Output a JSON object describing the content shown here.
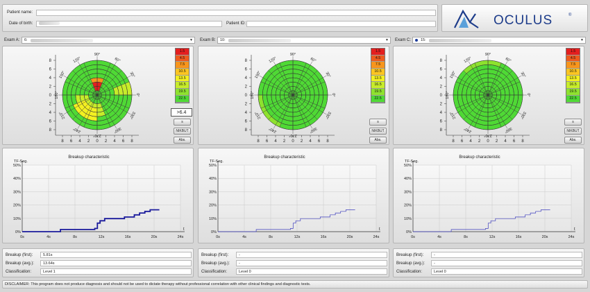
{
  "patient": {
    "name_label": "Patient name:",
    "dob_label": "Date of birth:",
    "id_label": "Patient ID:"
  },
  "logo": {
    "text": "OCULUS",
    "mark": "®"
  },
  "exams": [
    {
      "label": "Exam A:",
      "value": "6:",
      "value_after_redaction": "",
      "show_dot": false,
      "threshold_value": ">6.4",
      "buttons": [
        "s",
        "NIKBUT",
        "Abs."
      ],
      "summary": {
        "first": "5.81s",
        "avg": "13.64s",
        "classification": "Level 1"
      },
      "chart_data": {
        "type": "line",
        "title": "Breakup characteristic",
        "ylabel": "TF-Seg.",
        "xlabel": "t",
        "x_ticks": [
          "0s",
          "4s",
          "8s",
          "12s",
          "16s",
          "20s",
          "24s"
        ],
        "y_ticks": [
          "0%",
          "10%",
          "20%",
          "30%",
          "40%",
          "50%"
        ],
        "xlim": [
          0,
          24
        ],
        "ylim": [
          0,
          50
        ],
        "line_weight": "bold",
        "points": [
          [
            0,
            0
          ],
          [
            5.8,
            0
          ],
          [
            5.8,
            1.6
          ],
          [
            11.0,
            1.6
          ],
          [
            11.0,
            2.4
          ],
          [
            11.4,
            2.4
          ],
          [
            11.4,
            6.4
          ],
          [
            11.8,
            6.4
          ],
          [
            11.8,
            8.2
          ],
          [
            12.5,
            8.2
          ],
          [
            12.5,
            9.8
          ],
          [
            15.5,
            9.8
          ],
          [
            15.5,
            11.0
          ],
          [
            17.0,
            11.0
          ],
          [
            17.0,
            12.6
          ],
          [
            17.8,
            12.6
          ],
          [
            17.8,
            14.0
          ],
          [
            18.6,
            14.0
          ],
          [
            18.6,
            15.2
          ],
          [
            19.4,
            15.2
          ],
          [
            19.4,
            16.4
          ],
          [
            20.8,
            16.4
          ]
        ]
      }
    },
    {
      "label": "Exam B:",
      "value": "10:",
      "value_after_redaction": "",
      "show_dot": false,
      "threshold_value": "",
      "buttons": [
        "s",
        "NIKBUT",
        "Abs."
      ],
      "summary": {
        "first": "-",
        "avg": "-",
        "classification": "Level 0"
      },
      "chart_data": {
        "type": "line",
        "title": "Breakup characteristic",
        "ylabel": "TF-Seg.",
        "xlabel": "t",
        "x_ticks": [
          "0s",
          "4s",
          "8s",
          "12s",
          "16s",
          "20s",
          "24s"
        ],
        "y_ticks": [
          "0%",
          "10%",
          "20%",
          "30%",
          "40%",
          "50%"
        ],
        "xlim": [
          0,
          24
        ],
        "ylim": [
          0,
          50
        ],
        "line_weight": "thin",
        "points": [
          [
            0,
            0
          ],
          [
            5.8,
            0
          ],
          [
            5.8,
            1.6
          ],
          [
            11.0,
            1.6
          ],
          [
            11.0,
            2.4
          ],
          [
            11.4,
            2.4
          ],
          [
            11.4,
            6.4
          ],
          [
            11.8,
            6.4
          ],
          [
            11.8,
            8.2
          ],
          [
            12.5,
            8.2
          ],
          [
            12.5,
            9.8
          ],
          [
            15.5,
            9.8
          ],
          [
            15.5,
            11.0
          ],
          [
            17.0,
            11.0
          ],
          [
            17.0,
            12.6
          ],
          [
            17.8,
            12.6
          ],
          [
            17.8,
            14.0
          ],
          [
            18.6,
            14.0
          ],
          [
            18.6,
            15.2
          ],
          [
            19.4,
            15.2
          ],
          [
            19.4,
            16.4
          ],
          [
            20.8,
            16.4
          ]
        ]
      }
    },
    {
      "label": "Exam C:",
      "value": "15:",
      "value_after_redaction": "",
      "show_dot": true,
      "threshold_value": "",
      "buttons": [
        "s",
        "NIKBUT",
        "Abs."
      ],
      "summary": {
        "first": "-",
        "avg": "-",
        "classification": "Level 0"
      },
      "chart_data": {
        "type": "line",
        "title": "Breakup characteristic",
        "ylabel": "TF-Seg.",
        "xlabel": "t",
        "x_ticks": [
          "0s",
          "4s",
          "8s",
          "12s",
          "16s",
          "20s",
          "24s"
        ],
        "y_ticks": [
          "0%",
          "10%",
          "20%",
          "30%",
          "40%",
          "50%"
        ],
        "xlim": [
          0,
          24
        ],
        "ylim": [
          0,
          50
        ],
        "line_weight": "thin",
        "points": [
          [
            0,
            0
          ],
          [
            5.8,
            0
          ],
          [
            5.8,
            1.6
          ],
          [
            11.0,
            1.6
          ],
          [
            11.0,
            2.4
          ],
          [
            11.4,
            2.4
          ],
          [
            11.4,
            6.4
          ],
          [
            11.8,
            6.4
          ],
          [
            11.8,
            8.2
          ],
          [
            12.5,
            8.2
          ],
          [
            12.5,
            9.8
          ],
          [
            15.5,
            9.8
          ],
          [
            15.5,
            11.0
          ],
          [
            17.0,
            11.0
          ],
          [
            17.0,
            12.6
          ],
          [
            17.8,
            12.6
          ],
          [
            17.8,
            14.0
          ],
          [
            18.6,
            14.0
          ],
          [
            18.6,
            15.2
          ],
          [
            19.4,
            15.2
          ],
          [
            19.4,
            16.4
          ],
          [
            20.8,
            16.4
          ]
        ]
      }
    }
  ],
  "polar": {
    "angle_labels": [
      "90°",
      "60°",
      "30°",
      "0°",
      "330°",
      "300°",
      "270°",
      "240°",
      "210°",
      "180°",
      "150°",
      "120°"
    ],
    "axis_ticks": [
      "8",
      "6",
      "4",
      "2",
      "0",
      "2",
      "4",
      "6",
      "8"
    ]
  },
  "scale": {
    "values": [
      "1.5",
      "4.5",
      "7.5",
      "10.5",
      "13.5",
      "16.5",
      "19.5",
      "22.5"
    ],
    "colors": [
      "#e41f1f",
      "#ee5a1e",
      "#f7951c",
      "#fbc521",
      "#f3f021",
      "#c7ec2a",
      "#8ee22e",
      "#4fd935"
    ]
  },
  "summary_labels": {
    "first": "Breakup (first):",
    "avg": "Breakup (avg.):",
    "classification": "Classification:"
  },
  "disclaimer": "DISCLAIMER: This program does not produce diagnosis and should not be used to dictate therapy without professional correlation with other clinical findings and diagnostic tests."
}
